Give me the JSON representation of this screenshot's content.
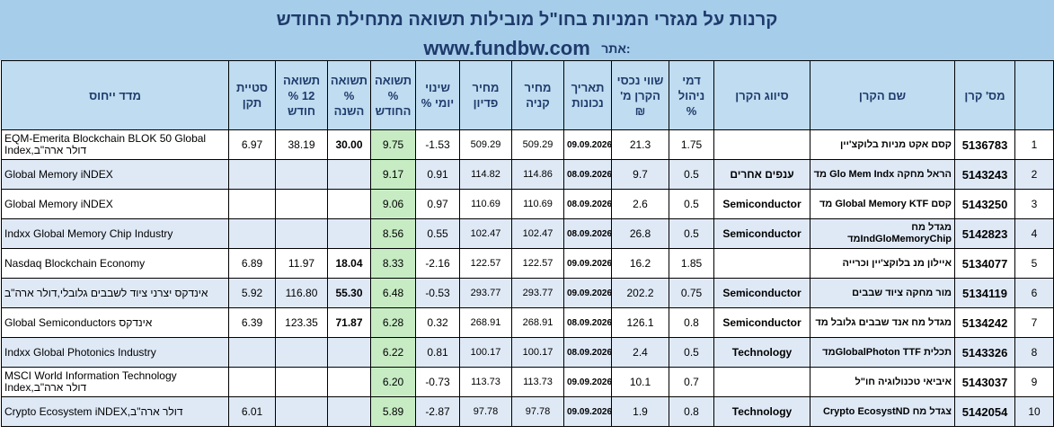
{
  "title": "קרנות על מגזרי המניות בחו\"ל מובילות תשואה מתחילת החודש",
  "site_prefix": "אתר:",
  "site_url": "www.fundbw.com",
  "headers": {
    "index": "מדד ייחוס",
    "stdev": "סטיית תקן",
    "ret12": "תשואה 12 % חודש",
    "retYear": "תשואה % השנה",
    "retMonth": "תשואה % החודש",
    "dayChange": "שינוי יומי %",
    "redeemPrice": "מחיר פדיון",
    "buyPrice": "מחיר קניה",
    "date": "תאריך נכונות",
    "assets": "שווי נכסי הקרן מ' ₪",
    "fee": "דמי ניהול %",
    "cls": "סיווג הקרן",
    "name": "שם הקרן",
    "fundId": "מס' קרן",
    "rank": ""
  },
  "rows": [
    {
      "index": "EQM-Emerita Blockchain BLOK 50 Global Index,דולר ארה\"ב",
      "stdev": "6.97",
      "ret12": "38.19",
      "retYear": "30.00",
      "retMonth": "9.75",
      "dayChange": "-1.53",
      "redeemPrice": "509.29",
      "buyPrice": "509.29",
      "date": "09.09.2026",
      "assets": "21.3",
      "fee": "1.75",
      "cls": "",
      "name": "קסם אקט מניות בלוקצ'יין",
      "fundId": "5136783",
      "rank": "1"
    },
    {
      "index": "Global Memory iNDEX",
      "stdev": "",
      "ret12": "",
      "retYear": "",
      "retMonth": "9.17",
      "dayChange": "0.91",
      "redeemPrice": "114.82",
      "buyPrice": "114.86",
      "date": "08.09.2026",
      "assets": "9.7",
      "fee": "0.5",
      "cls": "ענפים אחרים",
      "name": "הראל מחקה Glo Mem Indx מד",
      "fundId": "5143243",
      "rank": "2"
    },
    {
      "index": "Global Memory iNDEX",
      "stdev": "",
      "ret12": "",
      "retYear": "",
      "retMonth": "9.06",
      "dayChange": "0.97",
      "redeemPrice": "110.69",
      "buyPrice": "110.69",
      "date": "08.09.2026",
      "assets": "2.6",
      "fee": "0.5",
      "cls": "Semiconductor",
      "name": "קסם Global Memory KTF מד",
      "fundId": "5143250",
      "rank": "3"
    },
    {
      "index": "Indxx Global Memory Chip Industry",
      "stdev": "",
      "ret12": "",
      "retYear": "",
      "retMonth": "8.56",
      "dayChange": "0.55",
      "redeemPrice": "102.47",
      "buyPrice": "102.47",
      "date": "08.09.2026",
      "assets": "26.8",
      "fee": "0.5",
      "cls": "Semiconductor",
      "name": "מגדל מח IndGloMemoryChipמד",
      "fundId": "5142823",
      "rank": "4"
    },
    {
      "index": "Nasdaq Blockchain Economy",
      "stdev": "6.89",
      "ret12": "11.97",
      "retYear": "18.04",
      "retMonth": "8.33",
      "dayChange": "-2.16",
      "redeemPrice": "122.57",
      "buyPrice": "122.57",
      "date": "09.09.2026",
      "assets": "16.2",
      "fee": "1.85",
      "cls": "",
      "name": "איילון מנ בלוקצ'יין וכרייה",
      "fundId": "5134077",
      "rank": "5"
    },
    {
      "index": "אינדקס יצרני ציוד לשבבים גלובלי,דולר ארה\"ב",
      "stdev": "5.92",
      "ret12": "116.80",
      "retYear": "55.30",
      "retMonth": "6.48",
      "dayChange": "-0.53",
      "redeemPrice": "293.77",
      "buyPrice": "293.77",
      "date": "09.09.2026",
      "assets": "202.2",
      "fee": "0.75",
      "cls": "Semiconductor",
      "name": "מור מחקה ציוד שבבים",
      "fundId": "5134119",
      "rank": "6"
    },
    {
      "index": "Global Semiconductors אינדקס",
      "stdev": "6.39",
      "ret12": "123.35",
      "retYear": "71.87",
      "retMonth": "6.28",
      "dayChange": "0.32",
      "redeemPrice": "268.91",
      "buyPrice": "268.91",
      "date": "08.09.2026",
      "assets": "126.1",
      "fee": "0.8",
      "cls": "Semiconductor",
      "name": "מגדל מח אנד שבבים גלובל מד",
      "fundId": "5134242",
      "rank": "7"
    },
    {
      "index": "Indxx Global Photonics Industry",
      "stdev": "",
      "ret12": "",
      "retYear": "",
      "retMonth": "6.22",
      "dayChange": "0.81",
      "redeemPrice": "100.17",
      "buyPrice": "100.17",
      "date": "08.09.2026",
      "assets": "2.4",
      "fee": "0.5",
      "cls": "Technology",
      "name": "תכלית GlobalPhoton TTFמד",
      "fundId": "5143326",
      "rank": "8"
    },
    {
      "index": "MSCI World Information Technology Index,דולר ארה\"ב",
      "stdev": "",
      "ret12": "",
      "retYear": "",
      "retMonth": "6.20",
      "dayChange": "-0.73",
      "redeemPrice": "113.73",
      "buyPrice": "113.73",
      "date": "09.09.2026",
      "assets": "10.1",
      "fee": "0.7",
      "cls": "",
      "name": "איביאי טכנולוגיה חו\"ל",
      "fundId": "5143037",
      "rank": "9"
    },
    {
      "index": "Crypto Ecosystem iNDEX,דולר ארה\"ב",
      "stdev": "6.01",
      "ret12": "",
      "retYear": "",
      "retMonth": "5.89",
      "dayChange": "-2.87",
      "redeemPrice": "97.78",
      "buyPrice": "97.78",
      "date": "09.09.2026",
      "assets": "1.9",
      "fee": "0.8",
      "cls": "Technology",
      "name": "צגדל מח Crypto EcosystND",
      "fundId": "5142054",
      "rank": "10"
    }
  ]
}
